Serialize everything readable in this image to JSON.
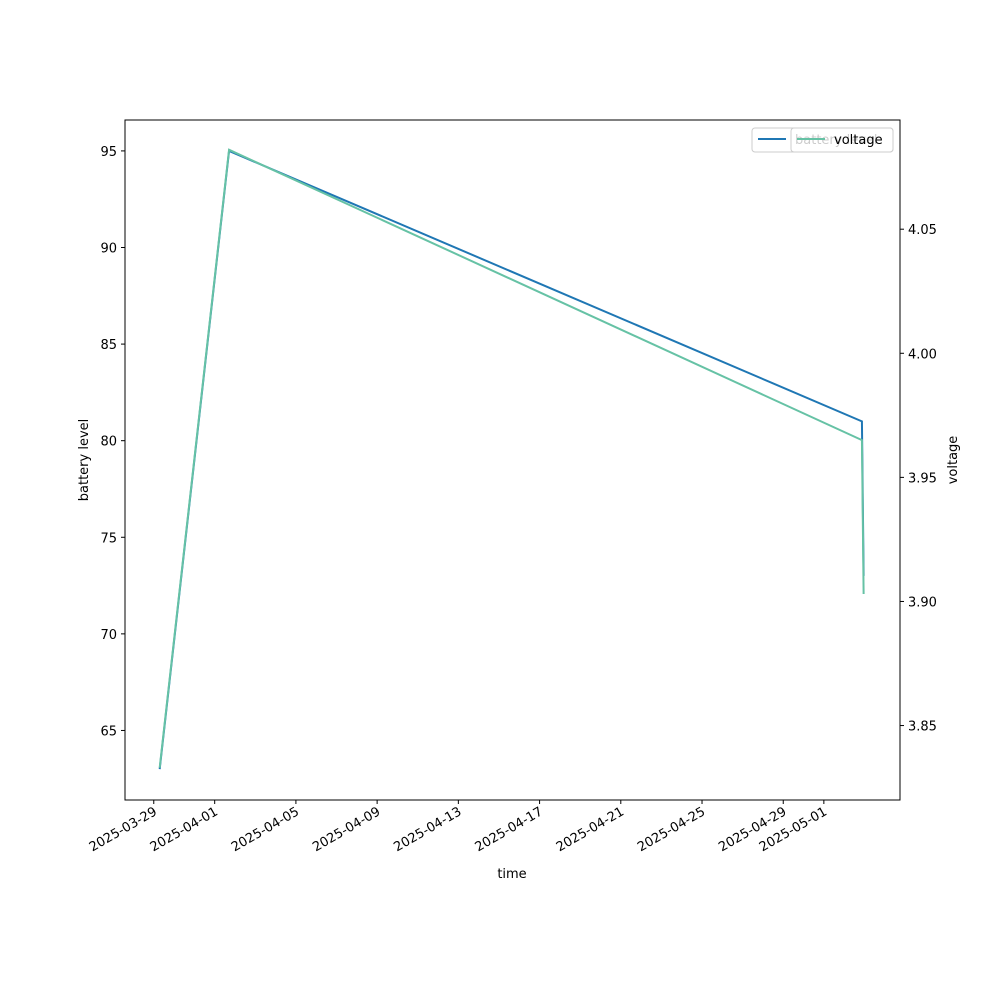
{
  "chart_data": {
    "type": "line",
    "x_label": "time",
    "y_label": "battery level",
    "y2_label": "voltage",
    "x": [
      "2025-03-29 07:00",
      "2025-04-01 17:00",
      "2025-05-02 21:00",
      "2025-05-02 23:00"
    ],
    "series": [
      {
        "name": "battery level",
        "color": "#1f77b4",
        "values": [
          63,
          95,
          81,
          73
        ]
      },
      {
        "name": "voltage",
        "color": "#66c2a5",
        "axis": "y2",
        "values": [
          3.833,
          4.082,
          3.965,
          3.903
        ]
      }
    ],
    "xlim": [
      "2025-03-27 14:00",
      "2025-05-04 18:00"
    ],
    "xticks": [
      "2025-03-29",
      "2025-04-01",
      "2025-04-05",
      "2025-04-09",
      "2025-04-13",
      "2025-04-17",
      "2025-04-21",
      "2025-04-25",
      "2025-04-29",
      "2025-05-01"
    ],
    "ylim": [
      61.4,
      96.6
    ],
    "yticks": [
      65,
      70,
      75,
      80,
      85,
      90,
      95
    ],
    "y2lim": [
      3.82,
      4.094
    ],
    "y2ticks": [
      3.85,
      {
        "value": 3.9,
        "label": "3.90"
      },
      3.95,
      {
        "value": 4.0,
        "label": "4.00"
      },
      4.05
    ],
    "legend": "upper right",
    "grid": false
  }
}
